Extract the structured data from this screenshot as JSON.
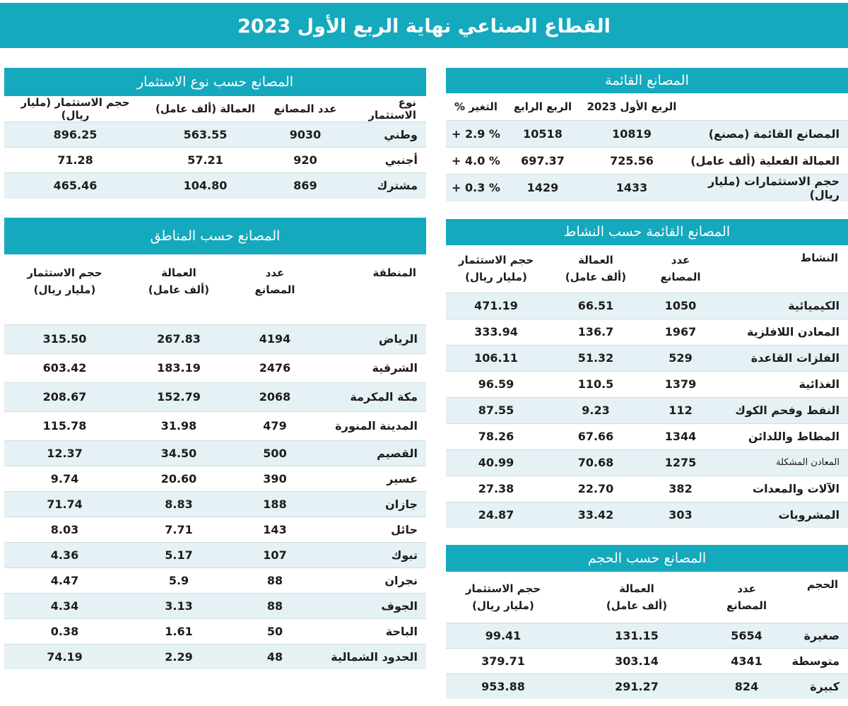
{
  "title": "القطاع الصناعي نهاية الربع الأول 2023",
  "existing": {
    "title": "المصانع القائمة",
    "headers": [
      "",
      "الربع الأول 2023",
      "الربع الرابع",
      "التغير %"
    ],
    "rows": [
      {
        "label": "المصانع القائمة (مصنع)",
        "q1": "10819",
        "q4": "10518",
        "change": "% 2.9 +"
      },
      {
        "label": "العمالة الفعلية (ألف عامل)",
        "q1": "725.56",
        "q4": "697.37",
        "change": "% 4.0 +"
      },
      {
        "label": "حجم الاستثمارات (مليار ريال)",
        "q1": "1433",
        "q4": "1429",
        "change": "% 0.3 +"
      }
    ]
  },
  "investment_type": {
    "title": "المصانع حسب نوع الاستثمار",
    "headers": [
      "نوع الاستثمار",
      "عدد المصانع",
      "العمالة (ألف عامل)",
      "حجم الاستثمار (مليار ريال)"
    ],
    "rows": [
      {
        "label": "وطني",
        "factories": "9030",
        "labor": "563.55",
        "investment": "896.25"
      },
      {
        "label": "أجنبي",
        "factories": "920",
        "labor": "57.21",
        "investment": "71.28"
      },
      {
        "label": "مشترك",
        "factories": "869",
        "labor": "104.80",
        "investment": "465.46"
      }
    ]
  },
  "activity": {
    "title": "المصانع القائمة حسب النشاط",
    "headers": {
      "activity": "النشاط",
      "count_l1": "عدد",
      "count_l2": "المصانع",
      "labor_l1": "العمالة",
      "labor_l2": "(ألف عامل)",
      "inv_l1": "حجم الاستثمار",
      "inv_l2": "(مليار ريال)"
    },
    "rows": [
      {
        "label": "الكيميائية",
        "factories": "1050",
        "labor": "66.51",
        "investment": "471.19"
      },
      {
        "label": "المعادن اللافلزية",
        "factories": "1967",
        "labor": "136.7",
        "investment": "333.94"
      },
      {
        "label": "الفلزات القاعدة",
        "factories": "529",
        "labor": "51.32",
        "investment": "106.11"
      },
      {
        "label": "الغذائية",
        "factories": "1379",
        "labor": "110.5",
        "investment": "96.59"
      },
      {
        "label": "النفط وفحم الكوك",
        "factories": "112",
        "labor": "9.23",
        "investment": "87.55"
      },
      {
        "label": "المطاط واللدائن",
        "factories": "1344",
        "labor": "67.66",
        "investment": "78.26"
      },
      {
        "label": "المعادن المشكلة",
        "factories": "1275",
        "labor": "70.68",
        "investment": "40.99"
      },
      {
        "label": "الآلات والمعدات",
        "factories": "382",
        "labor": "22.70",
        "investment": "27.38"
      },
      {
        "label": "المشروبات",
        "factories": "303",
        "labor": "33.42",
        "investment": "24.87"
      }
    ]
  },
  "regions": {
    "title": "المصانع حسب المناطق",
    "headers": {
      "region": "المنطقة",
      "count_l1": "عدد",
      "count_l2": "المصانع",
      "labor_l1": "العمالة",
      "labor_l2": "(ألف عامل)",
      "inv_l1": "حجم الاستثمار",
      "inv_l2": "(مليار ريال)"
    },
    "rows": [
      {
        "label": "الرياض",
        "factories": "4194",
        "labor": "267.83",
        "investment": "315.50"
      },
      {
        "label": "الشرقية",
        "factories": "2476",
        "labor": "183.19",
        "investment": "603.42"
      },
      {
        "label": "مكة المكرمة",
        "factories": "2068",
        "labor": "152.79",
        "investment": "208.67"
      },
      {
        "label": "المدينة المنورة",
        "factories": "479",
        "labor": "31.98",
        "investment": "115.78"
      },
      {
        "label": "القصيم",
        "factories": "500",
        "labor": "34.50",
        "investment": "12.37"
      },
      {
        "label": "عسير",
        "factories": "390",
        "labor": "20.60",
        "investment": "9.74"
      },
      {
        "label": "جازان",
        "factories": "188",
        "labor": "8.83",
        "investment": "71.74"
      },
      {
        "label": "حائل",
        "factories": "143",
        "labor": "7.71",
        "investment": "8.03"
      },
      {
        "label": "تبوك",
        "factories": "107",
        "labor": "5.17",
        "investment": "4.36"
      },
      {
        "label": "نجران",
        "factories": "88",
        "labor": "5.9",
        "investment": "4.47"
      },
      {
        "label": "الجوف",
        "factories": "88",
        "labor": "3.13",
        "investment": "4.34"
      },
      {
        "label": "الباحة",
        "factories": "50",
        "labor": "1.61",
        "investment": "0.38"
      },
      {
        "label": "الحدود الشمالية",
        "factories": "48",
        "labor": "2.29",
        "investment": "74.19"
      }
    ]
  },
  "size": {
    "title": "المصانع حسب الحجم",
    "headers": {
      "size": "الحجم",
      "count_l1": "عدد",
      "count_l2": "المصانع",
      "labor_l1": "العمالة",
      "labor_l2": "(ألف عامل)",
      "inv_l1": "حجم الاستثمار",
      "inv_l2": "(مليار ريال)"
    },
    "rows": [
      {
        "label": "صغيرة",
        "factories": "5654",
        "labor": "131.15",
        "investment": "99.41"
      },
      {
        "label": "متوسطة",
        "factories": "4341",
        "labor": "303.14",
        "investment": "379.71"
      },
      {
        "label": "كبيرة",
        "factories": "824",
        "labor": "291.27",
        "investment": "953.88"
      }
    ]
  },
  "colors": {
    "accent": "#15a9bd",
    "stripe": "#e5f1f4"
  }
}
